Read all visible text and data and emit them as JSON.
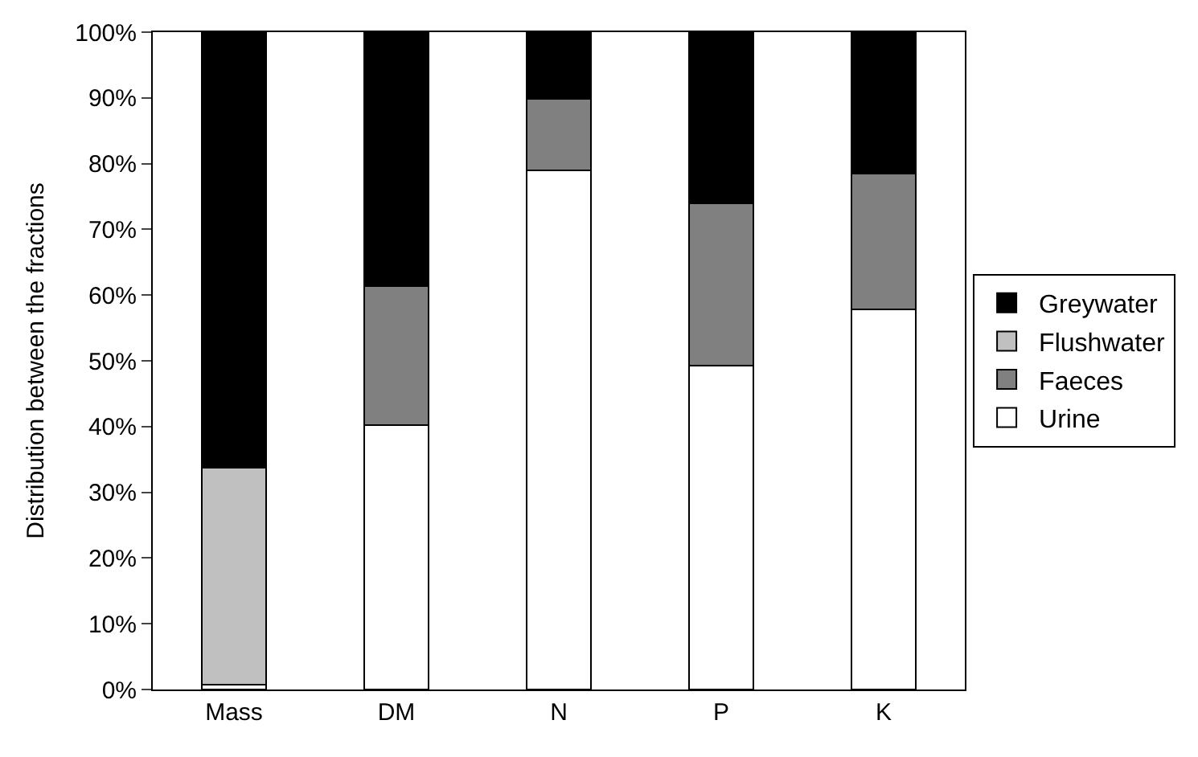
{
  "chart_data": {
    "type": "bar",
    "stacked": true,
    "ylabel": "Distribution between the fractions",
    "categories": [
      "Mass",
      "DM",
      "N",
      "P",
      "K"
    ],
    "series": [
      {
        "name": "Urine",
        "color": "#ffffff",
        "values": [
          0.7,
          40.2,
          79,
          49.3,
          57.8
        ]
      },
      {
        "name": "Faeces",
        "color": "#808080",
        "values": [
          0,
          21.2,
          10.8,
          24.7,
          20.7
        ]
      },
      {
        "name": "Flushwater",
        "color": "#c0c0c0",
        "values": [
          33.1,
          0,
          0,
          0,
          0
        ]
      },
      {
        "name": "Greywater",
        "color": "#000000",
        "values": [
          66.2,
          38.6,
          10.2,
          26,
          21.5
        ]
      }
    ],
    "ylim": [
      0,
      100
    ],
    "yticks": [
      {
        "value": 0,
        "label": "0%"
      },
      {
        "value": 10,
        "label": "10%"
      },
      {
        "value": 20,
        "label": "20%"
      },
      {
        "value": 30,
        "label": "30%"
      },
      {
        "value": 40,
        "label": "40%"
      },
      {
        "value": 50,
        "label": "50%"
      },
      {
        "value": 60,
        "label": "60%"
      },
      {
        "value": 70,
        "label": "70%"
      },
      {
        "value": 80,
        "label": "80%"
      },
      {
        "value": 90,
        "label": "90%"
      },
      {
        "value": 100,
        "label": "100%"
      }
    ],
    "grid": false,
    "legend": "right"
  }
}
